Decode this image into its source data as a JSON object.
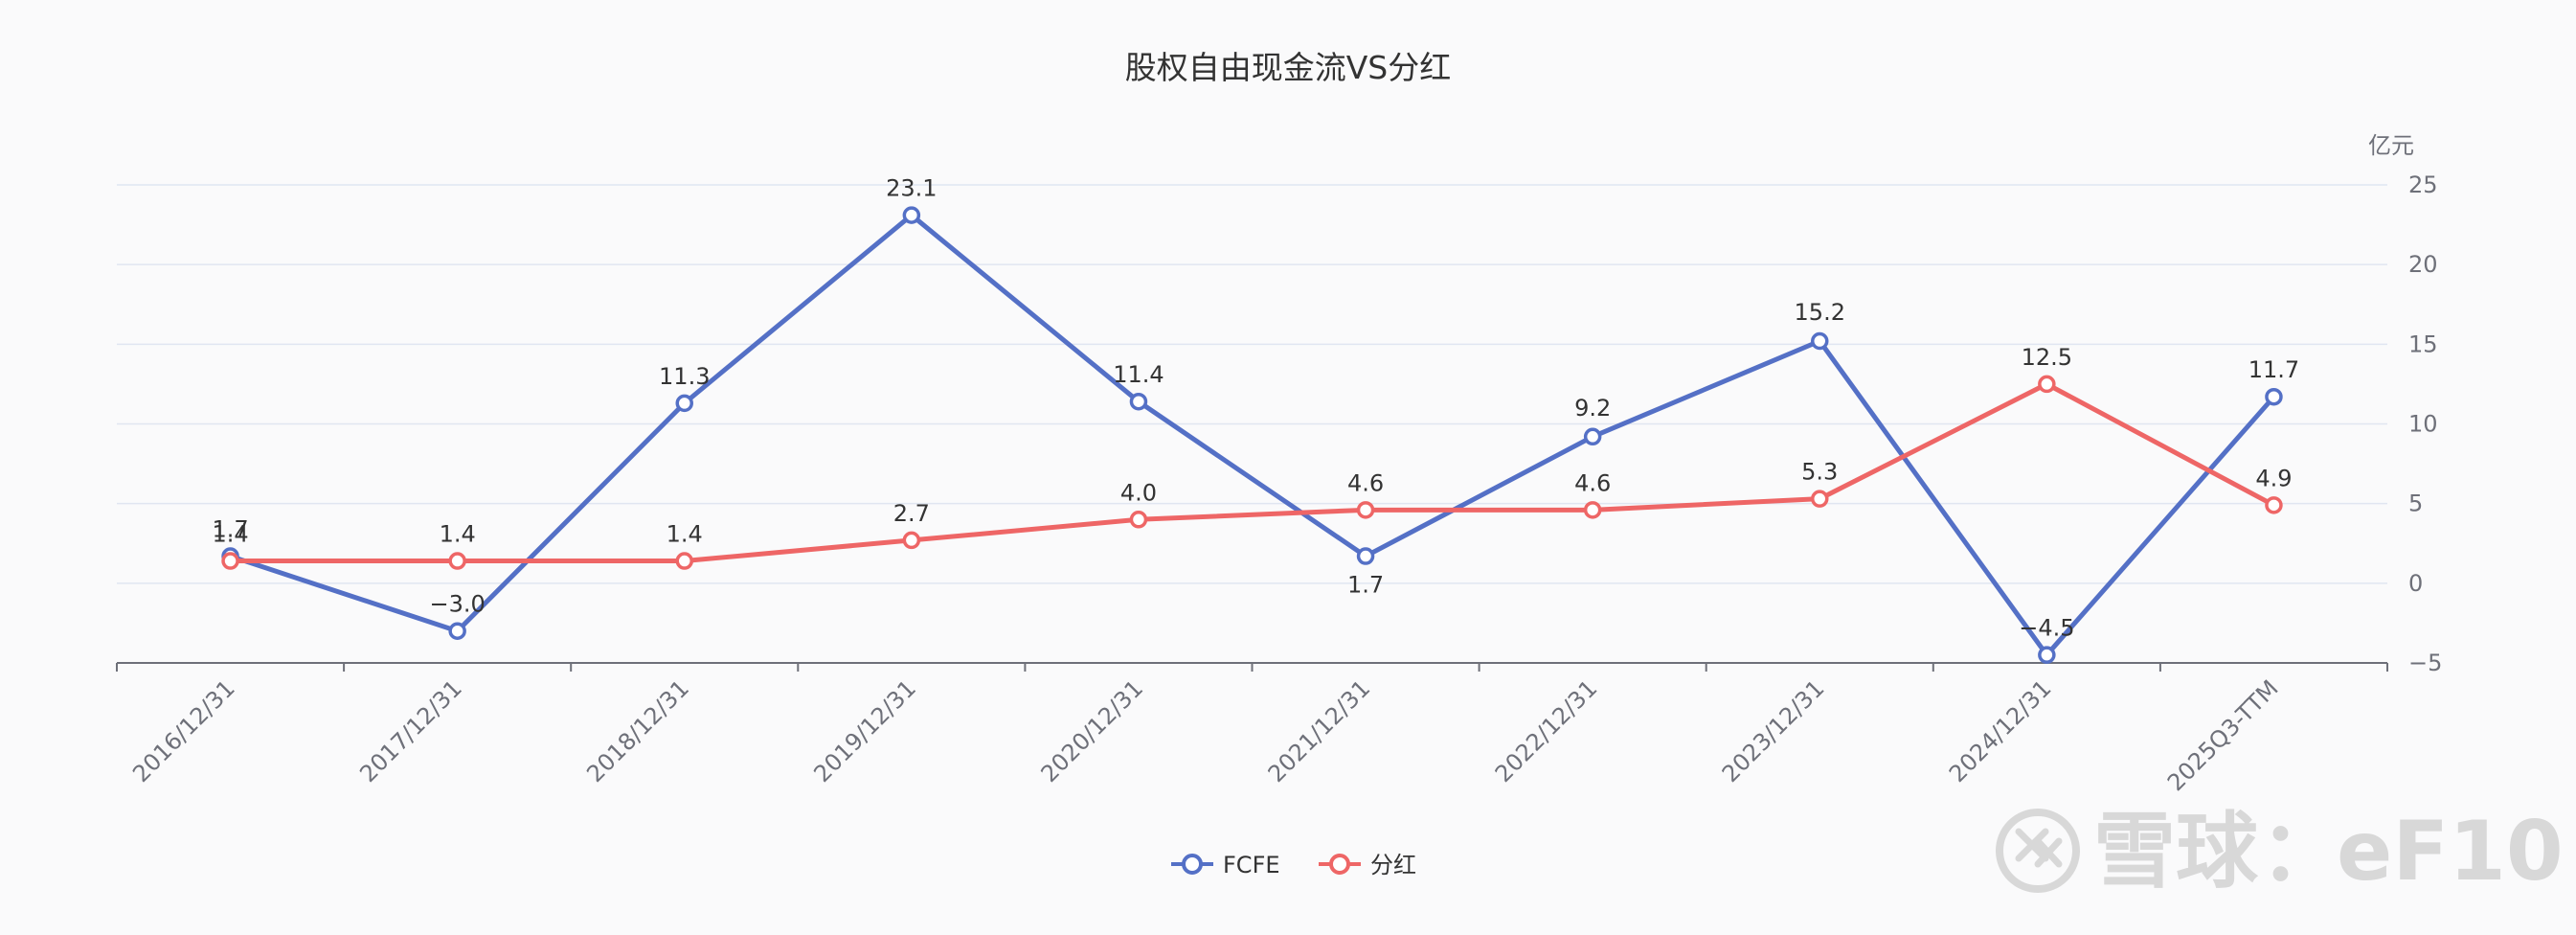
{
  "chart_data": {
    "type": "line",
    "title": "股权自由现金流VS分红",
    "unit": "亿元",
    "categories": [
      "2016/12/31",
      "2017/12/31",
      "2018/12/31",
      "2019/12/31",
      "2020/12/31",
      "2021/12/31",
      "2022/12/31",
      "2023/12/31",
      "2024/12/31",
      "2025Q3-TTM"
    ],
    "ylim": [
      -5,
      25
    ],
    "yticks": [
      -5,
      0,
      5,
      10,
      15,
      20,
      25
    ],
    "grid": true,
    "legend_position": "bottom-center",
    "series": [
      {
        "name": "FCFE",
        "color": "#5470c6",
        "values": [
          1.7,
          -3.0,
          11.3,
          23.1,
          11.4,
          1.7,
          9.2,
          15.2,
          -4.5,
          11.7
        ],
        "labels": [
          "1.7",
          "−3.0",
          "11.3",
          "23.1",
          "11.4",
          "1.7",
          "9.2",
          "15.2",
          "−4.5",
          "11.7"
        ]
      },
      {
        "name": "分红",
        "color": "#ee6666",
        "values": [
          1.4,
          1.4,
          1.4,
          2.7,
          4.0,
          4.6,
          4.6,
          5.3,
          12.5,
          4.9
        ],
        "labels": [
          "1.4",
          "1.4",
          "1.4",
          "2.7",
          "4.0",
          "4.6",
          "4.6",
          "5.3",
          "12.5",
          "4.9"
        ]
      }
    ]
  },
  "watermark": {
    "brand": "雪球",
    "sep": "：",
    "code": "eF10"
  }
}
